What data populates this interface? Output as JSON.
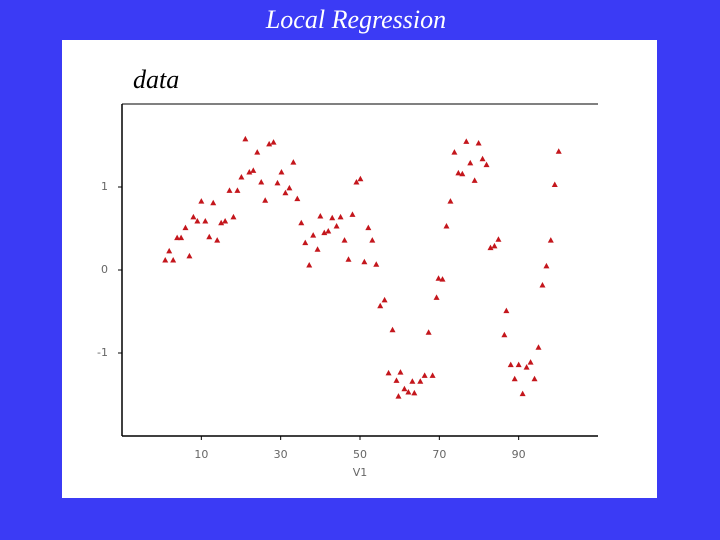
{
  "chart_data": {
    "type": "scatter",
    "title": "Local Regression",
    "panel_label": "data",
    "xlabel": "V1",
    "color": "#c4161c",
    "x": [
      0.9,
      1.9,
      2.9,
      3.9,
      4.9,
      6.0,
      7.0,
      8.0,
      9.0,
      10.0,
      11.0,
      12.0,
      13.0,
      14.0,
      15.0,
      16.0,
      17.1,
      18.1,
      19.1,
      20.1,
      21.1,
      22.1,
      23.1,
      24.1,
      25.1,
      26.1,
      27.1,
      28.2,
      29.2,
      30.2,
      31.2,
      32.2,
      33.2,
      34.2,
      35.2,
      36.2,
      37.2,
      38.2,
      39.3,
      40.0,
      41.0,
      42.0,
      43.0,
      44.1,
      45.1,
      46.1,
      47.1,
      48.1,
      49.1,
      50.1,
      51.1,
      52.1,
      53.1,
      54.1,
      55.1,
      56.2,
      58.2,
      57.2,
      59.2,
      59.7,
      60.2,
      61.2,
      62.2,
      63.2,
      63.7,
      65.2,
      66.3,
      67.3,
      68.3,
      69.3,
      69.8,
      70.8,
      71.8,
      72.8,
      73.8,
      74.8,
      75.8,
      76.8,
      77.8,
      78.9,
      79.9,
      80.9,
      81.9,
      82.9,
      83.9,
      84.9,
      86.9,
      86.4,
      88.0,
      89.0,
      90.0,
      91.0,
      92.0,
      93.0,
      94.0,
      95.0,
      96.0,
      97.0,
      98.1,
      99.1,
      100.1
    ],
    "values": [
      0.12,
      0.23,
      0.12,
      0.39,
      0.39,
      0.51,
      0.17,
      0.64,
      0.59,
      0.83,
      0.59,
      0.4,
      0.81,
      0.36,
      0.57,
      0.59,
      0.96,
      0.64,
      0.96,
      1.12,
      1.58,
      1.18,
      1.2,
      1.42,
      1.06,
      0.84,
      1.52,
      1.54,
      1.05,
      1.18,
      0.93,
      0.99,
      1.3,
      0.86,
      0.57,
      0.33,
      0.06,
      0.42,
      0.25,
      0.65,
      0.45,
      0.47,
      0.63,
      0.53,
      0.64,
      0.36,
      0.13,
      0.67,
      1.06,
      1.1,
      0.1,
      0.51,
      0.36,
      0.07,
      -0.43,
      -0.36,
      -0.72,
      -1.24,
      -1.33,
      -1.52,
      -1.23,
      -1.43,
      -1.47,
      -1.34,
      -1.48,
      -1.34,
      -1.27,
      -0.75,
      -1.27,
      -0.33,
      -0.1,
      -0.11,
      0.53,
      0.83,
      1.42,
      1.17,
      1.16,
      1.55,
      1.29,
      1.08,
      1.53,
      1.34,
      1.27,
      0.27,
      0.29,
      0.37,
      -0.49,
      -0.78,
      -1.14,
      -1.31,
      -1.14,
      -1.49,
      -1.17,
      -1.11,
      -1.31,
      -0.93,
      -0.18,
      0.05,
      0.36,
      1.03,
      1.43
    ],
    "xlim": [
      -10,
      110
    ],
    "ylim": [
      -2,
      2
    ],
    "xticks": [
      10,
      30,
      50,
      70,
      90
    ],
    "yticks": [
      -1,
      0,
      1
    ]
  }
}
